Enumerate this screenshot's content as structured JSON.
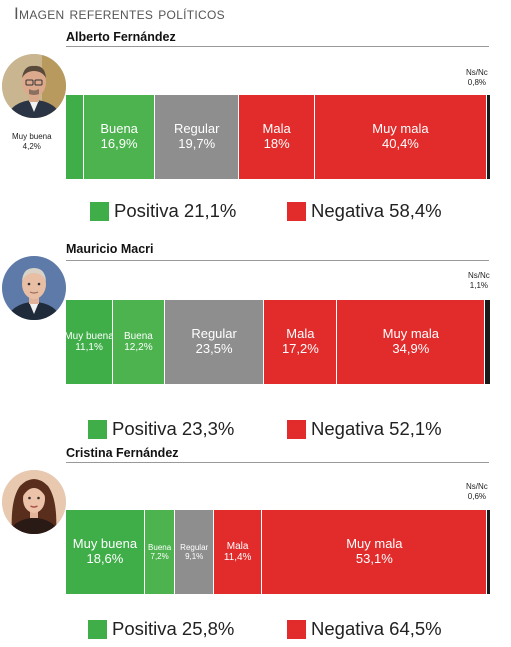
{
  "title": "Imagen referentes políticos",
  "colors": {
    "muy_buena": "#3fae49",
    "buena": "#4cb34f",
    "regular": "#8e8e8e",
    "mala": "#e22b2b",
    "muy_mala": "#e22b2b",
    "nsnc": "#1a1a1a",
    "positiva": "#3fae49",
    "negativa": "#e22b2b"
  },
  "chart_data": [
    {
      "type": "bar",
      "stacked": true,
      "title": "Alberto Fernández",
      "categories": [
        "Muy buena",
        "Buena",
        "Regular",
        "Mala",
        "Muy mala",
        "Ns/Nc"
      ],
      "values": [
        4.2,
        16.9,
        19.7,
        18,
        40.4,
        0.8
      ],
      "labels": [
        "4,2%",
        "16,9%",
        "19,7%",
        "18%",
        "40,4%",
        "0,8%"
      ],
      "legend": [
        {
          "name": "Positiva",
          "value": 21.1,
          "label": "Positiva 21,1%"
        },
        {
          "name": "Negativa",
          "value": 58.4,
          "label": "Negativa 58,4%"
        }
      ]
    },
    {
      "type": "bar",
      "stacked": true,
      "title": "Mauricio Macri",
      "categories": [
        "Muy buena",
        "Buena",
        "Regular",
        "Mala",
        "Muy mala",
        "Ns/Nc"
      ],
      "values": [
        11.1,
        12.2,
        23.5,
        17.2,
        34.9,
        1.1
      ],
      "labels": [
        "11,1%",
        "12,2%",
        "23,5%",
        "17,2%",
        "34,9%",
        "1,1%"
      ],
      "legend": [
        {
          "name": "Positiva",
          "value": 23.3,
          "label": "Positiva 23,3%"
        },
        {
          "name": "Negativa",
          "value": 52.1,
          "label": "Negativa 52,1%"
        }
      ]
    },
    {
      "type": "bar",
      "stacked": true,
      "title": "Cristina Fernández",
      "categories": [
        "Muy buena",
        "Buena",
        "Regular",
        "Mala",
        "Muy mala",
        "Ns/Nc"
      ],
      "values": [
        18.6,
        7.2,
        9.1,
        11.4,
        53.1,
        0.6
      ],
      "labels": [
        "18,6%",
        "7,2%",
        "9,1%",
        "11,4%",
        "53,1%",
        "0,6%"
      ],
      "legend": [
        {
          "name": "Positiva",
          "value": 25.8,
          "label": "Positiva 25,8%"
        },
        {
          "name": "Negativa",
          "value": 64.5,
          "label": "Negativa 64,5%"
        }
      ]
    }
  ]
}
